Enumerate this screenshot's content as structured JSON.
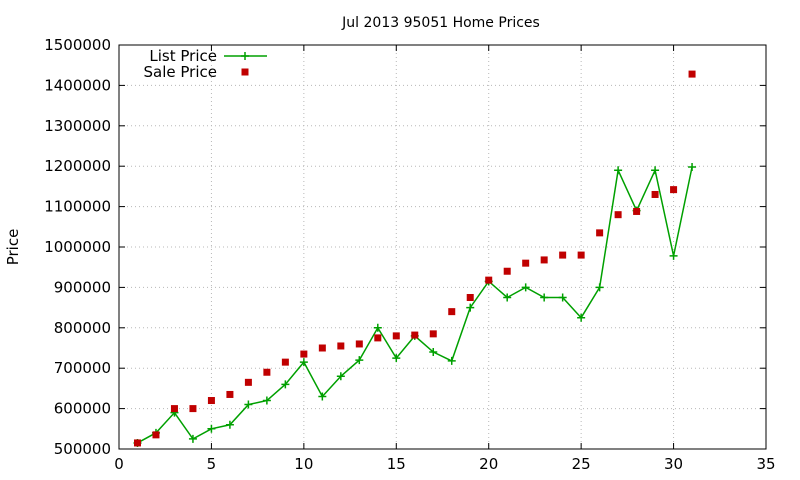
{
  "chart_data": {
    "type": "line",
    "title": "Jul 2013 95051 Home Prices",
    "xlabel": "",
    "ylabel": "Price",
    "xlim": [
      0,
      35
    ],
    "ylim": [
      500000,
      1500000
    ],
    "xticks": [
      "0",
      "5",
      "10",
      "15",
      "20",
      "25",
      "30",
      "35"
    ],
    "yticks": [
      "500000",
      "600000",
      "700000",
      "800000",
      "900000",
      "1000000",
      "1100000",
      "1200000",
      "1300000",
      "1400000",
      "1500000"
    ],
    "grid": true,
    "legend_position": "top-left",
    "series": [
      {
        "name": "List Price",
        "style": "line-points",
        "color": "#00a000",
        "x": [
          1,
          2,
          3,
          4,
          5,
          6,
          7,
          8,
          9,
          10,
          11,
          12,
          13,
          14,
          15,
          16,
          17,
          18,
          19,
          20,
          21,
          22,
          23,
          24,
          25,
          26,
          27,
          28,
          29,
          30,
          31
        ],
        "y": [
          515000,
          540000,
          590000,
          525000,
          550000,
          560000,
          610000,
          620000,
          660000,
          715000,
          630000,
          680000,
          720000,
          800000,
          725000,
          780000,
          740000,
          718000,
          850000,
          915000,
          875000,
          900000,
          875000,
          875000,
          825000,
          900000,
          1190000,
          1090000,
          1190000,
          978000,
          1198000
        ]
      },
      {
        "name": "Sale Price",
        "style": "points",
        "color": "#c00000",
        "x": [
          1,
          2,
          3,
          4,
          5,
          6,
          7,
          8,
          9,
          10,
          11,
          12,
          13,
          14,
          15,
          16,
          17,
          18,
          19,
          20,
          21,
          22,
          23,
          24,
          25,
          26,
          27,
          28,
          29,
          30,
          31
        ],
        "y": [
          515000,
          535000,
          600000,
          600000,
          620000,
          635000,
          665000,
          690000,
          715000,
          735000,
          750000,
          755000,
          760000,
          775000,
          780000,
          782000,
          785000,
          840000,
          875000,
          918000,
          940000,
          960000,
          968000,
          980000,
          980000,
          1035000,
          1080000,
          1088000,
          1130000,
          1142000,
          1428000
        ]
      }
    ]
  }
}
